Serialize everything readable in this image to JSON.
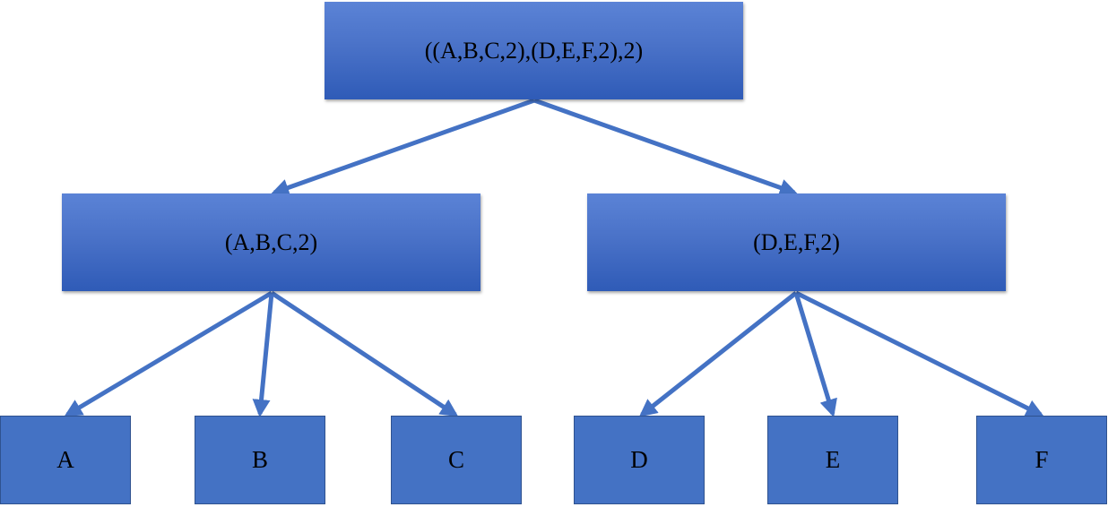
{
  "diagram": {
    "root": {
      "label": "((A,B,C,2),(D,E,F,2),2)"
    },
    "left": {
      "label": "(A,B,C,2)"
    },
    "right": {
      "label": "(D,E,F,2)"
    },
    "leaves": [
      {
        "label": "A"
      },
      {
        "label": "B"
      },
      {
        "label": "C"
      },
      {
        "label": "D"
      },
      {
        "label": "E"
      },
      {
        "label": "F"
      }
    ],
    "edges": [
      {
        "from": "root",
        "to": "left"
      },
      {
        "from": "root",
        "to": "right"
      },
      {
        "from": "left",
        "to": "A"
      },
      {
        "from": "left",
        "to": "B"
      },
      {
        "from": "left",
        "to": "C"
      },
      {
        "from": "right",
        "to": "D"
      },
      {
        "from": "right",
        "to": "E"
      },
      {
        "from": "right",
        "to": "F"
      }
    ],
    "colors": {
      "node_fill": "#4472c4",
      "edge": "#4472c4",
      "text": "#000000"
    }
  }
}
